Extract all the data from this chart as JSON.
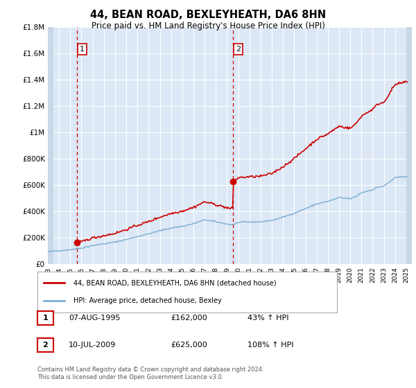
{
  "title": "44, BEAN ROAD, BEXLEYHEATH, DA6 8HN",
  "subtitle": "Price paid vs. HM Land Registry's House Price Index (HPI)",
  "title_fontsize": 10.5,
  "subtitle_fontsize": 8.5,
  "background_color": "#ffffff",
  "plot_bg_color": "#dce8f5",
  "hatch_color": "#c8d8e8",
  "grid_color": "#ffffff",
  "ylim": [
    0,
    1800000
  ],
  "xlim_start": 1993.0,
  "xlim_end": 2025.5,
  "sale1_year": 1995.585,
  "sale1_price": 162000,
  "sale1_label": "1",
  "sale1_date": "07-AUG-1995",
  "sale1_hpi_pct": "43",
  "sale2_year": 2009.53,
  "sale2_price": 625000,
  "sale2_label": "2",
  "sale2_date": "10-JUL-2009",
  "sale2_hpi_pct": "108",
  "red_line_color": "#cc0000",
  "blue_line_color": "#7aadd4",
  "legend_label_red": "44, BEAN ROAD, BEXLEYHEATH, DA6 8HN (detached house)",
  "legend_label_blue": "HPI: Average price, detached house, Bexley",
  "footer_text": "Contains HM Land Registry data © Crown copyright and database right 2024.\nThis data is licensed under the Open Government Licence v3.0.",
  "ytick_labels": [
    "£0",
    "£200K",
    "£400K",
    "£600K",
    "£800K",
    "£1M",
    "£1.2M",
    "£1.4M",
    "£1.6M",
    "£1.8M"
  ],
  "ytick_values": [
    0,
    200000,
    400000,
    600000,
    800000,
    1000000,
    1200000,
    1400000,
    1600000,
    1800000
  ],
  "xtick_years": [
    1993,
    1994,
    1995,
    1996,
    1997,
    1998,
    1999,
    2000,
    2001,
    2002,
    2003,
    2004,
    2005,
    2006,
    2007,
    2008,
    2009,
    2010,
    2011,
    2012,
    2013,
    2014,
    2015,
    2016,
    2017,
    2018,
    2019,
    2020,
    2021,
    2022,
    2023,
    2024,
    2025
  ]
}
